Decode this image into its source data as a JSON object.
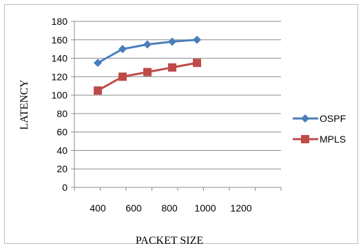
{
  "chart_data": {
    "type": "line",
    "title": "",
    "xlabel": "PACKET SIZE",
    "ylabel": "LATENCY",
    "categories": [
      "400",
      "600",
      "800",
      "1000",
      "1200"
    ],
    "x": [
      400,
      600,
      800,
      1000,
      1200
    ],
    "ylim": [
      0,
      180
    ],
    "yticks": [
      0,
      20,
      40,
      60,
      80,
      100,
      120,
      140,
      160,
      180
    ],
    "grid": true,
    "legend_position": "right",
    "series": [
      {
        "name": "OSPF",
        "values": [
          135,
          150,
          155,
          158,
          160
        ],
        "color": "#4a7ebb",
        "marker": "diamond"
      },
      {
        "name": "MPLS",
        "values": [
          105,
          120,
          125,
          130,
          135
        ],
        "color": "#be4b48",
        "marker": "square"
      }
    ]
  }
}
